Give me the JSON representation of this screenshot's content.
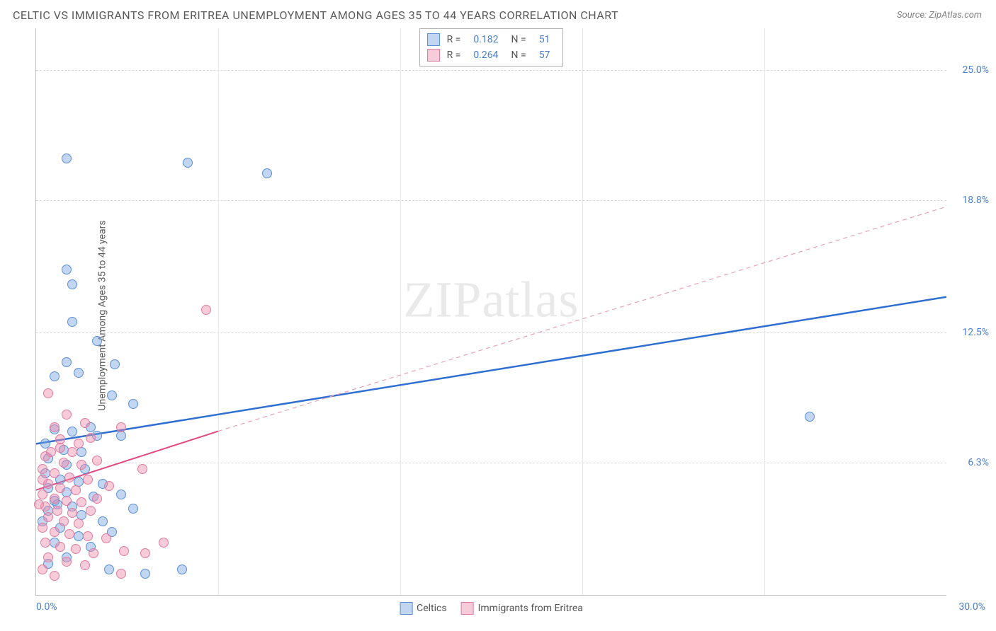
{
  "title": "CELTIC VS IMMIGRANTS FROM ERITREA UNEMPLOYMENT AMONG AGES 35 TO 44 YEARS CORRELATION CHART",
  "source": "Source: ZipAtlas.com",
  "y_axis_label": "Unemployment Among Ages 35 to 44 years",
  "watermark_1": "ZIP",
  "watermark_2": "atlas",
  "chart": {
    "type": "scatter",
    "xlim": [
      0,
      30
    ],
    "ylim": [
      0,
      27
    ],
    "x_origin": "0.0%",
    "x_max": "30.0%",
    "y_ticks": [
      {
        "v": 6.3,
        "label": "6.3%"
      },
      {
        "v": 12.5,
        "label": "12.5%"
      },
      {
        "v": 18.8,
        "label": "18.8%"
      },
      {
        "v": 25.0,
        "label": "25.0%"
      }
    ],
    "grid_color": "#d8d8d8",
    "background_color": "#ffffff",
    "marker_radius": 7,
    "series": [
      {
        "name": "Celtics",
        "fill": "rgba(120,165,225,0.45)",
        "stroke": "#5b8fd6",
        "R": "0.182",
        "N": "51",
        "trend": {
          "x1": 0,
          "y1": 7.2,
          "x2": 30,
          "y2": 14.2,
          "color": "#2e6fd1",
          "width": 2.5,
          "dash": "none"
        },
        "trend_ext": null,
        "points": [
          [
            1.0,
            20.8
          ],
          [
            5.0,
            20.6
          ],
          [
            7.6,
            20.1
          ],
          [
            1.0,
            15.5
          ],
          [
            1.2,
            14.8
          ],
          [
            1.2,
            13.0
          ],
          [
            2.0,
            12.1
          ],
          [
            1.0,
            11.1
          ],
          [
            2.6,
            11.0
          ],
          [
            1.4,
            10.6
          ],
          [
            0.6,
            10.4
          ],
          [
            2.5,
            9.5
          ],
          [
            3.2,
            9.1
          ],
          [
            1.8,
            8.0
          ],
          [
            0.6,
            7.9
          ],
          [
            1.2,
            7.8
          ],
          [
            2.0,
            7.6
          ],
          [
            2.8,
            7.6
          ],
          [
            0.3,
            7.2
          ],
          [
            0.9,
            6.9
          ],
          [
            1.5,
            6.8
          ],
          [
            0.4,
            6.5
          ],
          [
            25.5,
            8.5
          ],
          [
            1.0,
            6.2
          ],
          [
            1.6,
            6.0
          ],
          [
            0.3,
            5.8
          ],
          [
            0.8,
            5.5
          ],
          [
            1.4,
            5.4
          ],
          [
            2.2,
            5.3
          ],
          [
            0.4,
            5.1
          ],
          [
            1.0,
            4.9
          ],
          [
            2.8,
            4.8
          ],
          [
            1.9,
            4.7
          ],
          [
            0.6,
            4.5
          ],
          [
            1.2,
            4.2
          ],
          [
            3.2,
            4.1
          ],
          [
            0.4,
            4.0
          ],
          [
            1.5,
            3.8
          ],
          [
            2.2,
            3.5
          ],
          [
            0.8,
            3.2
          ],
          [
            1.4,
            2.8
          ],
          [
            2.5,
            3.0
          ],
          [
            0.6,
            2.5
          ],
          [
            1.8,
            2.3
          ],
          [
            2.4,
            1.2
          ],
          [
            3.6,
            1.0
          ],
          [
            4.8,
            1.2
          ],
          [
            1.0,
            1.8
          ],
          [
            0.4,
            1.5
          ],
          [
            0.2,
            3.5
          ],
          [
            0.7,
            4.3
          ]
        ]
      },
      {
        "name": "Immigrants from Eritrea",
        "fill": "rgba(240,140,170,0.45)",
        "stroke": "#e07ba0",
        "R": "0.264",
        "N": "57",
        "trend": {
          "x1": 0,
          "y1": 5.0,
          "x2": 6.0,
          "y2": 7.8,
          "color": "#e24a7d",
          "width": 2,
          "dash": "none"
        },
        "trend_ext": {
          "x1": 6.0,
          "y1": 7.8,
          "x2": 30,
          "y2": 18.5,
          "color": "#e9a0bb",
          "width": 1.2,
          "dash": "6,5"
        },
        "points": [
          [
            5.6,
            13.6
          ],
          [
            0.4,
            9.6
          ],
          [
            1.0,
            8.6
          ],
          [
            1.6,
            8.2
          ],
          [
            0.6,
            8.0
          ],
          [
            1.8,
            7.5
          ],
          [
            2.8,
            8.0
          ],
          [
            0.8,
            7.0
          ],
          [
            1.2,
            6.8
          ],
          [
            0.3,
            6.6
          ],
          [
            0.9,
            6.3
          ],
          [
            1.5,
            6.2
          ],
          [
            2.0,
            6.4
          ],
          [
            0.2,
            6.0
          ],
          [
            0.6,
            5.8
          ],
          [
            1.1,
            5.6
          ],
          [
            1.7,
            5.5
          ],
          [
            3.5,
            6.0
          ],
          [
            0.4,
            5.3
          ],
          [
            0.8,
            5.1
          ],
          [
            1.3,
            5.0
          ],
          [
            0.2,
            4.8
          ],
          [
            0.6,
            4.6
          ],
          [
            1.0,
            4.5
          ],
          [
            1.5,
            4.4
          ],
          [
            2.0,
            4.6
          ],
          [
            0.3,
            4.2
          ],
          [
            0.7,
            4.0
          ],
          [
            1.2,
            3.9
          ],
          [
            1.8,
            4.0
          ],
          [
            0.4,
            3.7
          ],
          [
            0.9,
            3.5
          ],
          [
            1.4,
            3.4
          ],
          [
            0.2,
            3.2
          ],
          [
            0.6,
            3.0
          ],
          [
            1.1,
            2.9
          ],
          [
            1.7,
            2.8
          ],
          [
            2.3,
            2.7
          ],
          [
            2.9,
            2.1
          ],
          [
            0.3,
            2.5
          ],
          [
            0.8,
            2.3
          ],
          [
            1.3,
            2.2
          ],
          [
            1.9,
            2.0
          ],
          [
            0.4,
            1.8
          ],
          [
            1.0,
            1.6
          ],
          [
            1.6,
            1.4
          ],
          [
            2.8,
            1.0
          ],
          [
            3.6,
            2.0
          ],
          [
            4.2,
            2.5
          ],
          [
            0.2,
            1.2
          ],
          [
            0.6,
            0.9
          ],
          [
            0.2,
            5.5
          ],
          [
            0.5,
            6.8
          ],
          [
            0.8,
            7.4
          ],
          [
            1.4,
            7.2
          ],
          [
            2.4,
            5.2
          ],
          [
            0.1,
            4.3
          ]
        ]
      }
    ]
  },
  "legend_stats_labels": {
    "R": "R  =",
    "N": "N  ="
  },
  "bottom_legend": [
    "Celtics",
    "Immigrants from Eritrea"
  ]
}
